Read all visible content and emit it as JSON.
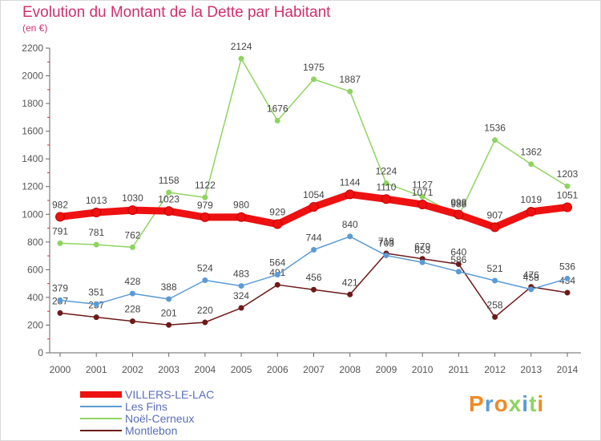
{
  "title": "Evolution du Montant de la Dette par Habitant",
  "unit_label": "(en €)",
  "logo_text": "Proxiti",
  "colors": {
    "title": "#d0306c",
    "axis": "#555555",
    "grid_tick": "#cc3333",
    "legend_text": "#5a6fb6"
  },
  "chart_data": {
    "type": "line",
    "title": "Evolution du Montant de la Dette par Habitant",
    "ylabel": "(en €)",
    "xlabel": "",
    "ylim": [
      0,
      2200
    ],
    "yticks": [
      "0",
      "200",
      "400",
      "600",
      "800",
      "1000",
      "1200",
      "1400",
      "1600",
      "1800",
      "2000",
      "2200"
    ],
    "x": [
      "2000",
      "2001",
      "2002",
      "2003",
      "2004",
      "2005",
      "2006",
      "2007",
      "2008",
      "2009",
      "2010",
      "2011",
      "2012",
      "2013",
      "2014"
    ],
    "legend_position": "bottom-left",
    "series": [
      {
        "name": "Montlebon",
        "color": "#6e1a1a",
        "values": [
          287,
          257,
          228,
          201,
          220,
          324,
          491,
          456,
          421,
          718,
          679,
          640,
          258,
          476,
          434
        ]
      },
      {
        "name": "Les Fins",
        "color": "#5b9bd5",
        "values": [
          379,
          351,
          428,
          388,
          524,
          483,
          564,
          744,
          840,
          703,
          653,
          586,
          521,
          458,
          536
        ]
      },
      {
        "name": "Noël-Cerneux",
        "color": "#8fd460",
        "values": [
          791,
          781,
          762,
          1158,
          1122,
          2124,
          1676,
          1975,
          1887,
          1224,
          1127,
          988,
          1536,
          1362,
          1203
        ]
      },
      {
        "name": "VILLERS-LE-LAC",
        "color": "#ee1111",
        "values": [
          982,
          1013,
          1030,
          1023,
          979,
          980,
          929,
          1054,
          1144,
          1110,
          1071,
          998,
          907,
          1019,
          1051
        ]
      }
    ],
    "legend": [
      "VILLERS-LE-LAC",
      "Les Fins",
      "Noël-Cerneux",
      "Montlebon"
    ]
  }
}
